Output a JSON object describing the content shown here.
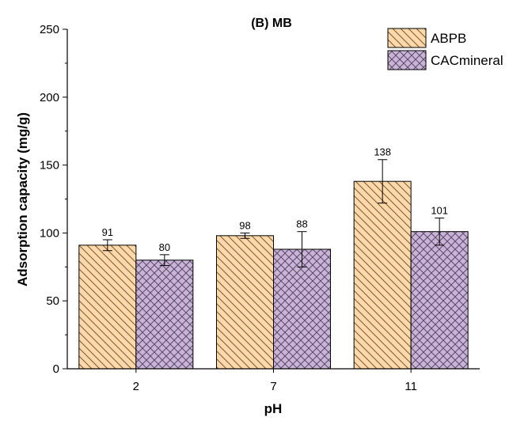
{
  "chart_data": {
    "type": "bar",
    "title": "(B) MB",
    "xlabel": "pH",
    "ylabel": "Adsorption capacity (mg/g)",
    "categories": [
      "2",
      "7",
      "11"
    ],
    "ylim": [
      0,
      250
    ],
    "yticks": [
      0,
      50,
      100,
      150,
      200,
      250
    ],
    "series": [
      {
        "name": "ABPB",
        "values": [
          91,
          98,
          138
        ],
        "errors": [
          4,
          2,
          16
        ],
        "labels": [
          "91",
          "98",
          "138"
        ],
        "color": "#FDD8A8",
        "hatch": "diagonal"
      },
      {
        "name": "CACmineral",
        "values": [
          80,
          88,
          101
        ],
        "errors": [
          4,
          13,
          10
        ],
        "labels": [
          "80",
          "88",
          "101"
        ],
        "color": "#C9B4D6",
        "hatch": "crosshatch"
      }
    ],
    "legend": "top-right",
    "grid": false
  }
}
